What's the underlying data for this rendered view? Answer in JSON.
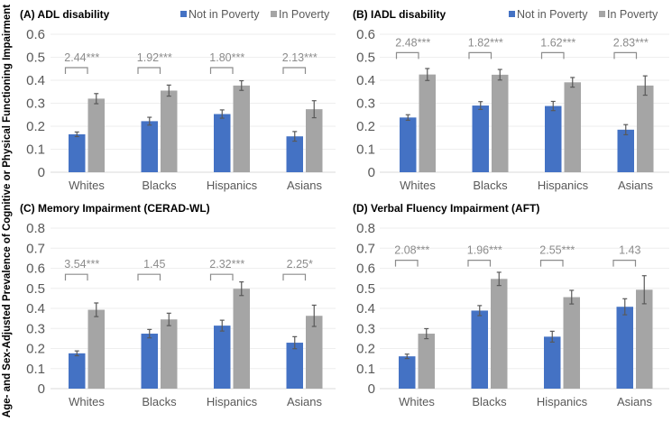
{
  "y_axis_label": "Age- and Sex-Adjusted Prevalence of Cognitive or Physical Functioning Impairment",
  "legend": [
    "Not in Poverty",
    "In Poverty"
  ],
  "colors": {
    "not_in_poverty": "#4472C4",
    "in_poverty": "#A5A5A5",
    "error_bar": "#595959",
    "bracket": "#8c8c8c",
    "grid": "#eeeeee"
  },
  "chart_data": [
    {
      "type": "bar",
      "title": "(A) ADL disability",
      "categories": [
        "Whites",
        "Blacks",
        "Hispanics",
        "Asians"
      ],
      "ylim": [
        0,
        0.6
      ],
      "yticks": [
        "0",
        "0.1",
        "0.2",
        "0.3",
        "0.4",
        "0.5",
        "0.6"
      ],
      "series": [
        {
          "name": "Not in Poverty",
          "values": [
            0.165,
            0.222,
            0.253,
            0.156
          ],
          "errors": [
            0.01,
            0.017,
            0.018,
            0.021
          ]
        },
        {
          "name": "In Poverty",
          "values": [
            0.32,
            0.355,
            0.377,
            0.274
          ],
          "errors": [
            0.022,
            0.024,
            0.021,
            0.037
          ]
        }
      ],
      "annotations": [
        "2.44***",
        "1.92***",
        "1.80***",
        "2.13***"
      ],
      "bracket_level": 0.455
    },
    {
      "type": "bar",
      "title": "(B) IADL disability",
      "categories": [
        "Whites",
        "Blacks",
        "Hispanics",
        "Asians"
      ],
      "ylim": [
        0,
        0.6
      ],
      "yticks": [
        "0",
        "0.1",
        "0.2",
        "0.3",
        "0.4",
        "0.5",
        "0.6"
      ],
      "series": [
        {
          "name": "Not in Poverty",
          "values": [
            0.238,
            0.29,
            0.288,
            0.185
          ],
          "errors": [
            0.012,
            0.017,
            0.02,
            0.022
          ]
        },
        {
          "name": "In Poverty",
          "values": [
            0.425,
            0.424,
            0.391,
            0.377
          ],
          "errors": [
            0.026,
            0.023,
            0.021,
            0.042
          ]
        }
      ],
      "annotations": [
        "2.48***",
        "1.82***",
        "1.62***",
        "2.83***"
      ],
      "bracket_level": 0.52
    },
    {
      "type": "bar",
      "title": "(C) Memory Impairment (CERAD-WL)",
      "categories": [
        "Whites",
        "Blacks",
        "Hispanics",
        "Asians"
      ],
      "ylim": [
        0,
        0.8
      ],
      "yticks": [
        "0",
        "0.1",
        "0.2",
        "0.3",
        "0.4",
        "0.5",
        "0.6",
        "0.7",
        "0.8"
      ],
      "series": [
        {
          "name": "Not in Poverty",
          "values": [
            0.176,
            0.274,
            0.314,
            0.229
          ],
          "errors": [
            0.012,
            0.021,
            0.027,
            0.03
          ]
        },
        {
          "name": "In Poverty",
          "values": [
            0.393,
            0.345,
            0.498,
            0.363
          ],
          "errors": [
            0.034,
            0.031,
            0.034,
            0.053
          ]
        }
      ],
      "annotations": [
        "3.54***",
        "1.45",
        "2.32***",
        "2.25*"
      ],
      "bracket_level": 0.57
    },
    {
      "type": "bar",
      "title": "(D) Verbal Fluency Impairment (AFT)",
      "categories": [
        "Whites",
        "Blacks",
        "Hispanics",
        "Asians"
      ],
      "ylim": [
        0,
        0.8
      ],
      "yticks": [
        "0",
        "0.1",
        "0.2",
        "0.3",
        "0.4",
        "0.5",
        "0.6",
        "0.7",
        "0.8"
      ],
      "series": [
        {
          "name": "Not in Poverty",
          "values": [
            0.161,
            0.389,
            0.259,
            0.408
          ],
          "errors": [
            0.011,
            0.025,
            0.027,
            0.04
          ]
        },
        {
          "name": "In Poverty",
          "values": [
            0.274,
            0.547,
            0.456,
            0.493
          ],
          "errors": [
            0.025,
            0.033,
            0.034,
            0.07
          ]
        }
      ],
      "annotations": [
        "2.08***",
        "1.96***",
        "2.55***",
        "1.43"
      ],
      "bracket_level": 0.64
    }
  ]
}
